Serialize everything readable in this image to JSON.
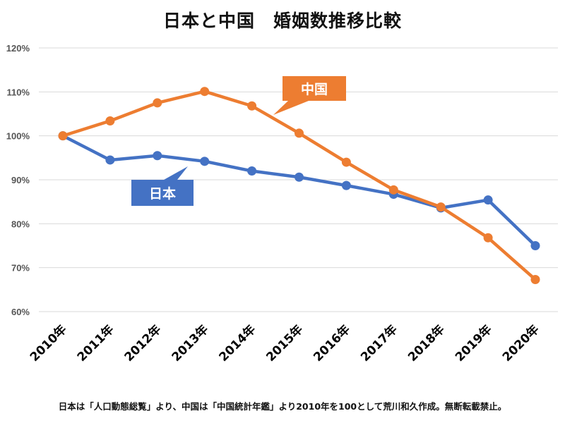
{
  "title": "日本と中国　婚姻数推移比較",
  "footnote": "日本は「人口動態総覧」より、中国は「中国統計年鑑」より2010年を100として荒川和久作成。無断転載禁止。",
  "colors": {
    "japan": "#4472C4",
    "china": "#ED7D31",
    "grid": "#d9d9d9"
  },
  "chart_data": {
    "type": "line",
    "title": "日本と中国　婚姻数推移比較",
    "xlabel": "",
    "ylabel": "",
    "categories": [
      "2010年",
      "2011年",
      "2012年",
      "2013年",
      "2014年",
      "2015年",
      "2016年",
      "2017年",
      "2018年",
      "2019年",
      "2020年"
    ],
    "ylim": [
      60,
      120
    ],
    "yticks": [
      60,
      70,
      80,
      90,
      100,
      110,
      120
    ],
    "ytick_labels": [
      "60%",
      "70%",
      "80%",
      "90%",
      "100%",
      "110%",
      "120%"
    ],
    "grid": true,
    "legend": "none (callout labels)",
    "series": [
      {
        "name": "日本",
        "color": "#4472C4",
        "values": [
          100,
          94.5,
          95.5,
          94.2,
          92.0,
          90.6,
          88.7,
          86.7,
          83.6,
          85.4,
          75.0
        ]
      },
      {
        "name": "中国",
        "color": "#ED7D31",
        "values": [
          100,
          103.4,
          107.5,
          110.1,
          106.8,
          100.6,
          94.0,
          87.7,
          83.8,
          76.8,
          67.3
        ]
      }
    ],
    "annotations": [
      {
        "text": "日本",
        "series": "日本",
        "near": "2013年"
      },
      {
        "text": "中国",
        "series": "中国",
        "near": "2015年"
      }
    ]
  }
}
